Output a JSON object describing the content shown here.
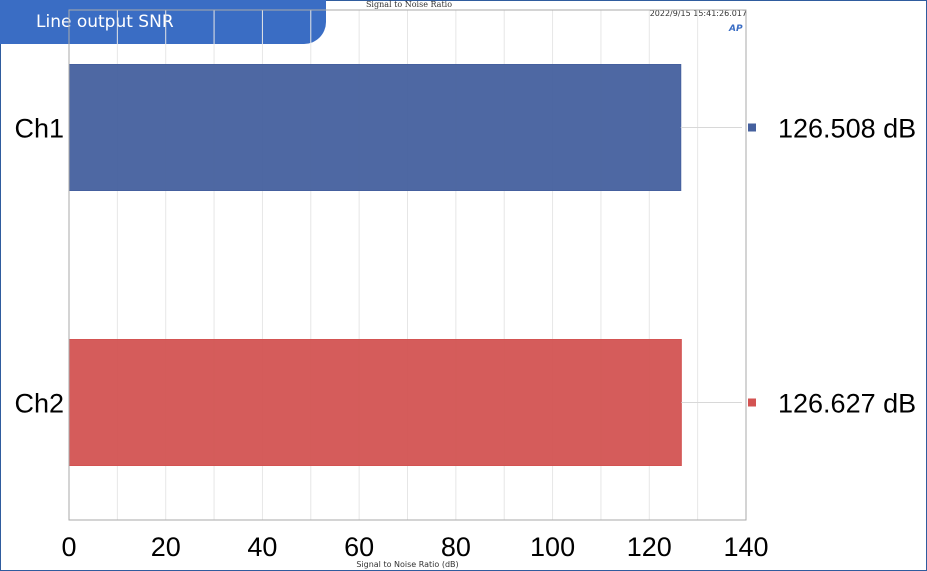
{
  "header": {
    "title": "Line output SNR",
    "chart_title": "Signal to Noise Ratio",
    "timestamp": "2022/9/15 15:41:26.017",
    "logo": "AP"
  },
  "colors": {
    "ch1": "#45609e",
    "ch2": "#d35352",
    "accent": "#3a6dc4"
  },
  "chart_data": {
    "type": "bar",
    "orientation": "horizontal",
    "categories": [
      "Ch1",
      "Ch2"
    ],
    "values": [
      126.508,
      126.627
    ],
    "value_labels": [
      "126.508 dB",
      "126.627 dB"
    ],
    "title": "Signal to Noise Ratio",
    "xlabel": "Signal to Noise Ratio (dB)",
    "ylabel": "",
    "xlim": [
      0,
      140
    ],
    "xticks": [
      0,
      20,
      40,
      60,
      80,
      100,
      120,
      140
    ],
    "grid": true,
    "legend": "right"
  }
}
